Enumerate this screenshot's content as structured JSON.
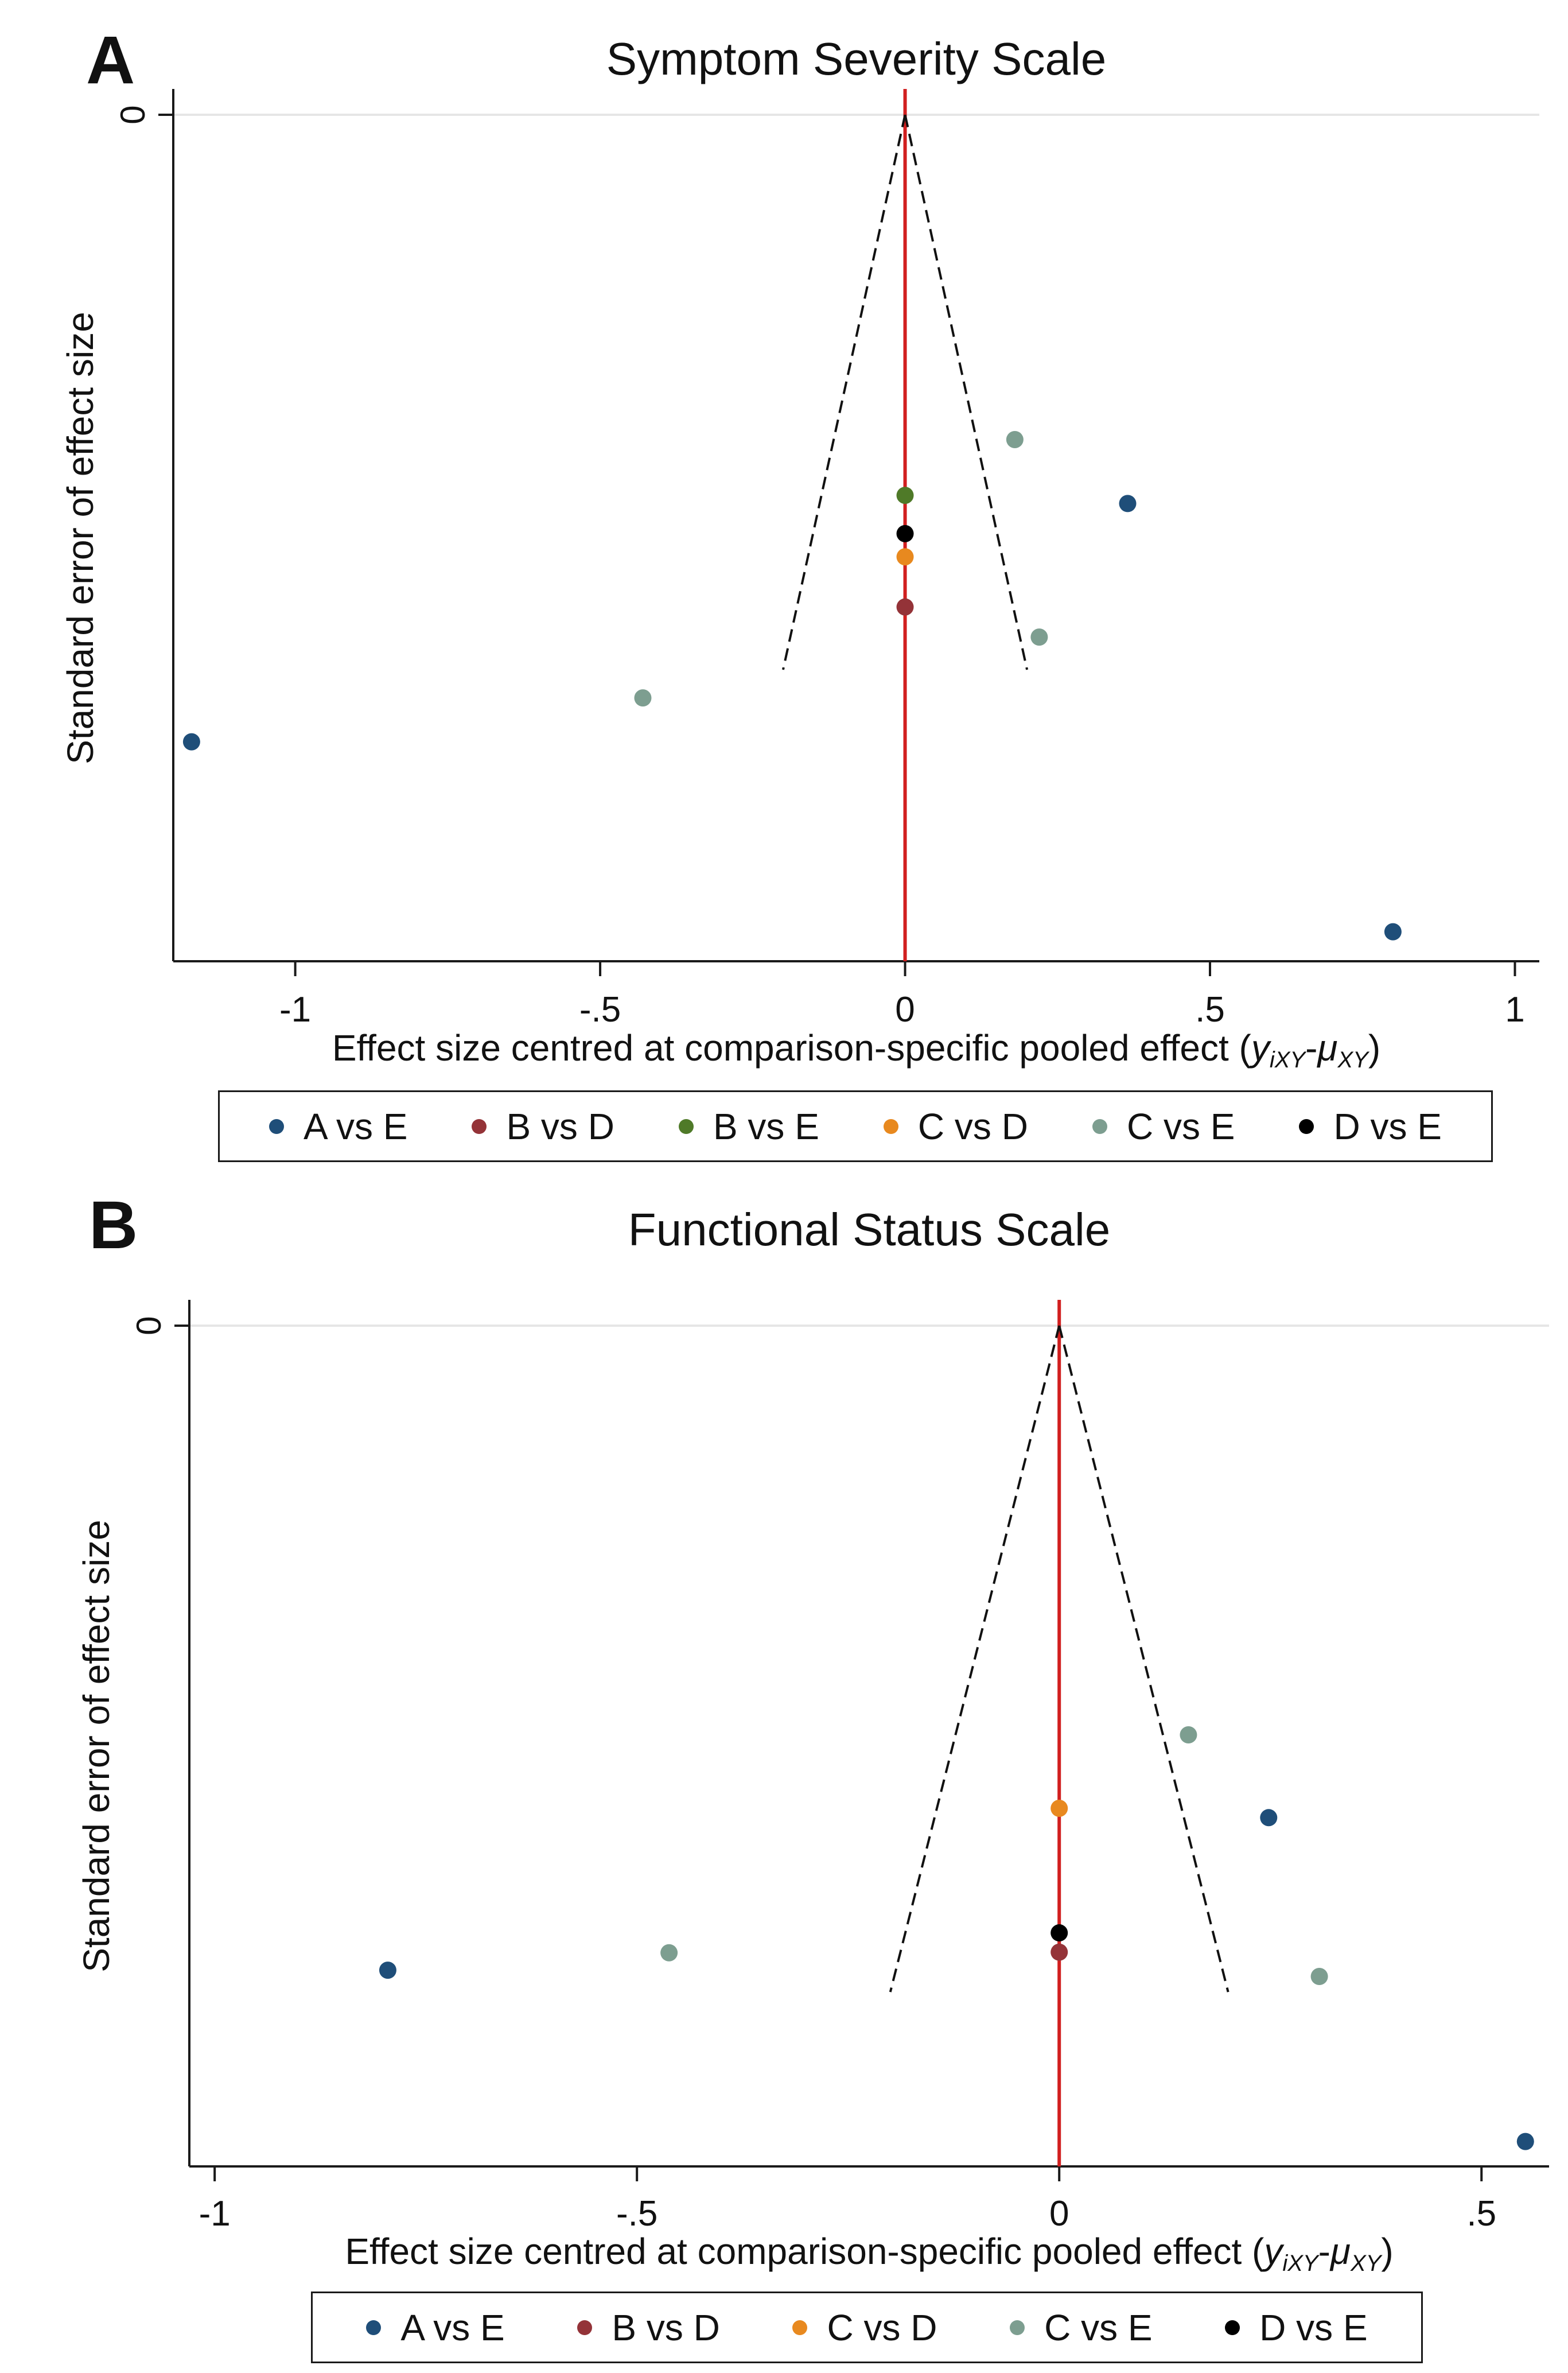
{
  "colors": {
    "A vs E": "#1f4e79",
    "B vs D": "#943338",
    "B vs E": "#4f7a28",
    "C vs D": "#e8891f",
    "C vs E": "#7d9e90",
    "D vs E": "#000000",
    "refline": "#d11f1f",
    "funnel": "#111111",
    "grid": "#e6e6e6"
  },
  "chart_data": [
    {
      "type": "scatter",
      "panel_label": "A",
      "title": "Symptom Severity Scale",
      "xlabel_main": "Effect size centred at comparison-specific pooled effect (",
      "xlabel_y": "y",
      "xlabel_ysub": "iXY",
      "xlabel_dash": "-",
      "xlabel_mu": "μ",
      "xlabel_musub": "XY",
      "xlabel_close": ")",
      "ylabel": "Standard error of effect size",
      "xlim": [
        -1.2,
        1.04
      ],
      "ylim": [
        0,
        1.35
      ],
      "xticks": [
        -1,
        -0.5,
        0,
        0.5,
        1
      ],
      "xtick_labels": [
        "-1",
        "-.5",
        "0",
        ".5",
        "1"
      ],
      "yticks": [
        0
      ],
      "ytick_labels": [
        "0"
      ],
      "funnel": {
        "apex": [
          0,
          0
        ],
        "bottom_se": 0.885,
        "half_width": 0.2
      },
      "refline_x": 0,
      "legend": [
        "A vs E",
        "B vs D",
        "B vs E",
        "C vs D",
        "C vs E",
        "D vs E"
      ],
      "series": [
        {
          "name": "A vs E",
          "points": [
            [
              -1.17,
              1.0
            ],
            [
              0.365,
              0.62
            ],
            [
              0.8,
              1.303
            ]
          ]
        },
        {
          "name": "B vs D",
          "points": [
            [
              0,
              0.785
            ]
          ]
        },
        {
          "name": "B vs E",
          "points": [
            [
              0,
              0.607
            ]
          ]
        },
        {
          "name": "C vs D",
          "points": [
            [
              0,
              0.705
            ]
          ]
        },
        {
          "name": "C vs E",
          "points": [
            [
              -0.43,
              0.93
            ],
            [
              0.18,
              0.518
            ],
            [
              0.22,
              0.833
            ]
          ]
        },
        {
          "name": "D vs E",
          "points": [
            [
              0,
              0.668
            ]
          ]
        }
      ]
    },
    {
      "type": "scatter",
      "panel_label": "B",
      "title": "Functional Status Scale",
      "xlabel_main": "Effect size centred at comparison-specific pooled effect (",
      "xlabel_y": "y",
      "xlabel_ysub": "iXY",
      "xlabel_dash": "-",
      "xlabel_mu": "μ",
      "xlabel_musub": "XY",
      "xlabel_close": ")",
      "ylabel": "Standard error of effect size",
      "xlim": [
        -1.03,
        0.58
      ],
      "ylim": [
        0,
        1.35
      ],
      "xticks": [
        -1,
        -0.5,
        0,
        0.5
      ],
      "xtick_labels": [
        "-1",
        "-.5",
        "0",
        ".5"
      ],
      "yticks": [
        0
      ],
      "ytick_labels": [
        "0"
      ],
      "funnel": {
        "apex": [
          0,
          0
        ],
        "bottom_se": 1.07,
        "half_width": 0.2
      },
      "refline_x": 0,
      "legend": [
        "A vs E",
        "B vs D",
        "C vs D",
        "C vs E",
        "D vs E"
      ],
      "series": [
        {
          "name": "A vs E",
          "points": [
            [
              -0.795,
              1.035
            ],
            [
              0.248,
              0.79
            ],
            [
              0.552,
              1.31
            ]
          ]
        },
        {
          "name": "B vs D",
          "points": [
            [
              0,
              1.006
            ]
          ]
        },
        {
          "name": "C vs D",
          "points": [
            [
              0,
              0.775
            ]
          ]
        },
        {
          "name": "C vs E",
          "points": [
            [
              -0.462,
              1.007
            ],
            [
              0.153,
              0.657
            ],
            [
              0.308,
              1.045
            ]
          ]
        },
        {
          "name": "D vs E",
          "points": [
            [
              0,
              0.975
            ]
          ]
        }
      ]
    }
  ]
}
